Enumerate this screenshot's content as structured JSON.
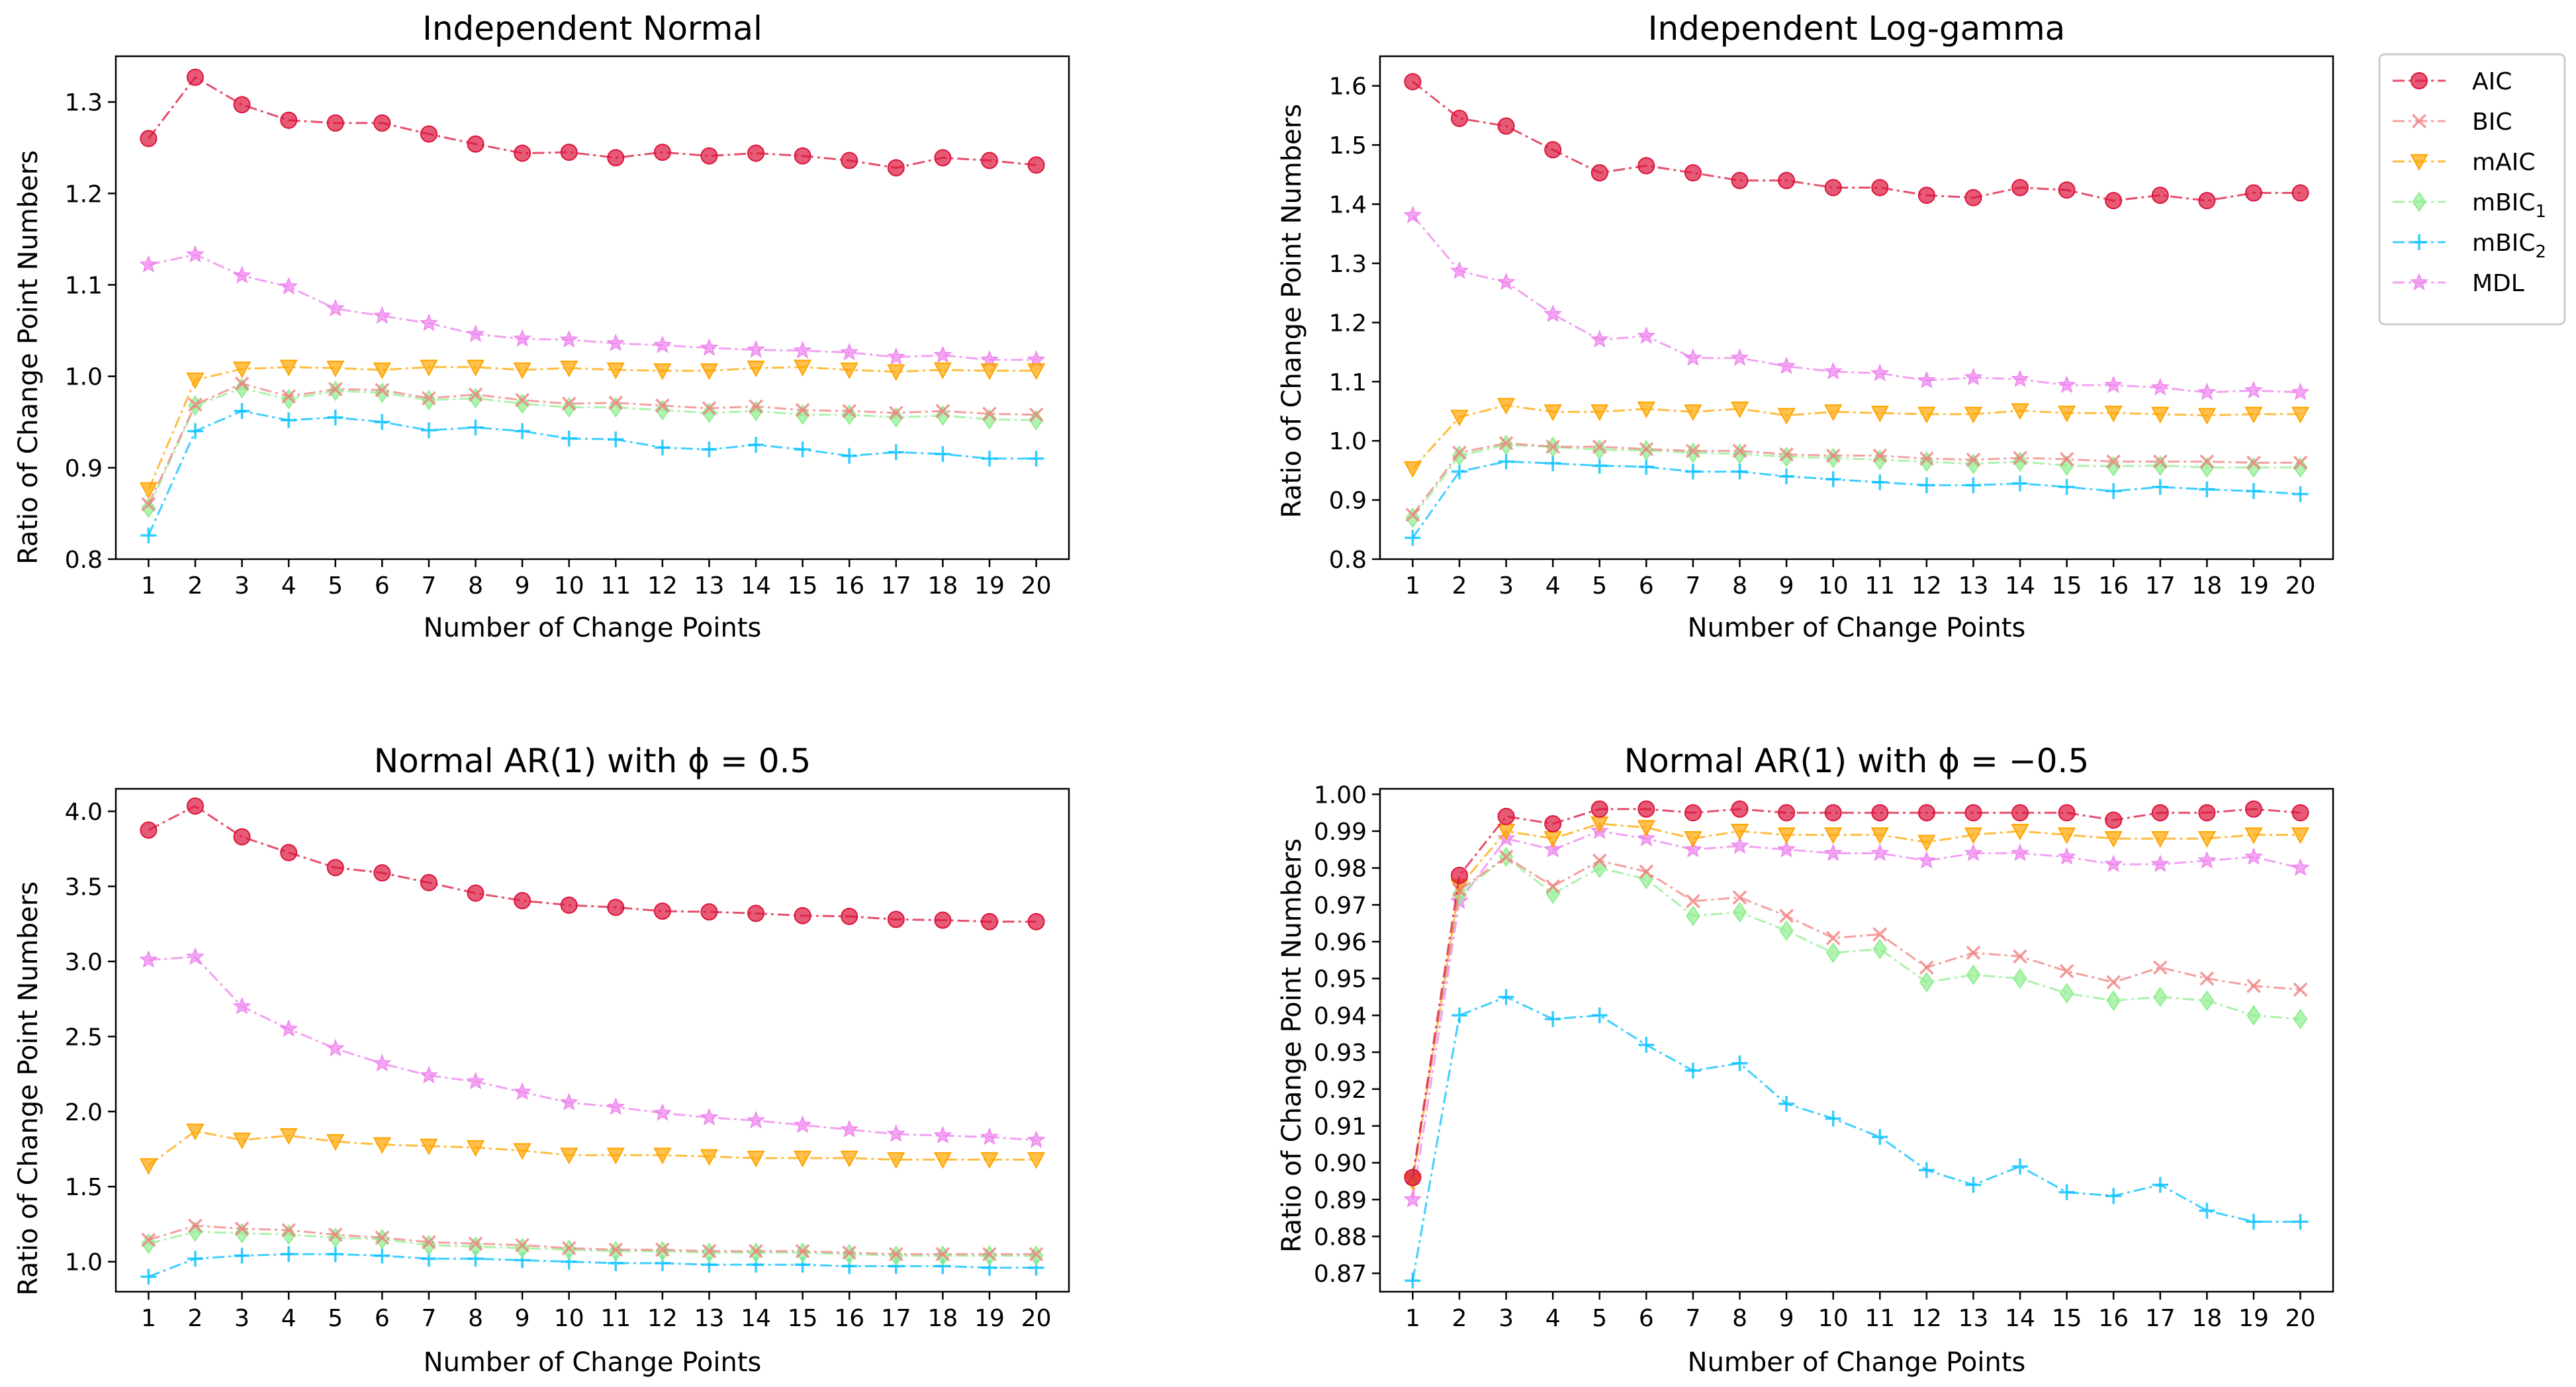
{
  "chart_data": [
    {
      "type": "line",
      "title": "Independent Normal",
      "xlabel": "Number of Change Points",
      "ylabel": "Ratio of Change Point Numbers",
      "x": [
        1,
        2,
        3,
        4,
        5,
        6,
        7,
        8,
        9,
        10,
        11,
        12,
        13,
        14,
        15,
        16,
        17,
        18,
        19,
        20
      ],
      "xlim": [
        0.3,
        20.7
      ],
      "ylim": [
        0.8,
        1.35
      ],
      "yticks": [
        "0.8",
        "0.9",
        "1.0",
        "1.1",
        "1.2",
        "1.3"
      ],
      "grid": false,
      "series": [
        {
          "name": "AIC",
          "values": [
            1.26,
            1.327,
            1.297,
            1.28,
            1.277,
            1.277,
            1.265,
            1.254,
            1.244,
            1.245,
            1.239,
            1.245,
            1.241,
            1.244,
            1.241,
            1.236,
            1.228,
            1.239,
            1.236,
            1.231
          ]
        },
        {
          "name": "BIC",
          "values": [
            0.86,
            0.969,
            0.992,
            0.978,
            0.986,
            0.985,
            0.976,
            0.98,
            0.974,
            0.97,
            0.971,
            0.968,
            0.965,
            0.967,
            0.963,
            0.962,
            0.96,
            0.962,
            0.959,
            0.958
          ]
        },
        {
          "name": "mAIC",
          "values": [
            0.876,
            0.996,
            1.008,
            1.01,
            1.009,
            1.007,
            1.01,
            1.01,
            1.007,
            1.009,
            1.007,
            1.006,
            1.006,
            1.009,
            1.01,
            1.007,
            1.005,
            1.007,
            1.006,
            1.006
          ]
        },
        {
          "name": "mBIC1",
          "values": [
            0.856,
            0.968,
            0.987,
            0.975,
            0.984,
            0.982,
            0.974,
            0.976,
            0.97,
            0.966,
            0.966,
            0.963,
            0.96,
            0.962,
            0.958,
            0.958,
            0.955,
            0.957,
            0.953,
            0.952
          ]
        },
        {
          "name": "mBIC2",
          "values": [
            0.826,
            0.94,
            0.962,
            0.952,
            0.955,
            0.95,
            0.941,
            0.944,
            0.94,
            0.932,
            0.931,
            0.922,
            0.92,
            0.925,
            0.92,
            0.913,
            0.917,
            0.915,
            0.91,
            0.91
          ]
        },
        {
          "name": "MDL",
          "values": [
            1.122,
            1.133,
            1.11,
            1.098,
            1.074,
            1.066,
            1.058,
            1.046,
            1.041,
            1.04,
            1.036,
            1.034,
            1.031,
            1.029,
            1.028,
            1.026,
            1.021,
            1.023,
            1.018,
            1.018
          ]
        }
      ]
    },
    {
      "type": "line",
      "title": "Independent Log-gamma",
      "xlabel": "Number of Change Points",
      "ylabel": "Ratio of Change Point Numbers",
      "x": [
        1,
        2,
        3,
        4,
        5,
        6,
        7,
        8,
        9,
        10,
        11,
        12,
        13,
        14,
        15,
        16,
        17,
        18,
        19,
        20
      ],
      "xlim": [
        0.3,
        20.7
      ],
      "ylim": [
        0.8,
        1.65
      ],
      "yticks": [
        "0.8",
        "0.9",
        "1.0",
        "1.1",
        "1.2",
        "1.3",
        "1.4",
        "1.5",
        "1.6"
      ],
      "grid": false,
      "series": [
        {
          "name": "AIC",
          "values": [
            1.607,
            1.545,
            1.532,
            1.492,
            1.453,
            1.465,
            1.453,
            1.44,
            1.44,
            1.428,
            1.428,
            1.415,
            1.411,
            1.428,
            1.424,
            1.406,
            1.415,
            1.406,
            1.419,
            1.419
          ]
        },
        {
          "name": "BIC",
          "values": [
            0.875,
            0.98,
            0.996,
            0.99,
            0.99,
            0.986,
            0.983,
            0.983,
            0.977,
            0.975,
            0.975,
            0.97,
            0.968,
            0.971,
            0.969,
            0.965,
            0.965,
            0.965,
            0.963,
            0.963
          ]
        },
        {
          "name": "mAIC",
          "values": [
            0.953,
            1.04,
            1.06,
            1.049,
            1.049,
            1.054,
            1.049,
            1.054,
            1.043,
            1.049,
            1.047,
            1.045,
            1.045,
            1.051,
            1.047,
            1.047,
            1.045,
            1.043,
            1.045,
            1.045
          ]
        },
        {
          "name": "mBIC1",
          "values": [
            0.87,
            0.975,
            0.993,
            0.99,
            0.985,
            0.984,
            0.98,
            0.978,
            0.973,
            0.971,
            0.968,
            0.965,
            0.961,
            0.965,
            0.958,
            0.957,
            0.958,
            0.955,
            0.955,
            0.955
          ]
        },
        {
          "name": "mBIC2",
          "values": [
            0.836,
            0.948,
            0.965,
            0.962,
            0.958,
            0.956,
            0.948,
            0.948,
            0.94,
            0.935,
            0.93,
            0.925,
            0.925,
            0.928,
            0.922,
            0.915,
            0.922,
            0.918,
            0.915,
            0.91
          ]
        },
        {
          "name": "MDL",
          "values": [
            1.381,
            1.287,
            1.268,
            1.214,
            1.171,
            1.177,
            1.14,
            1.14,
            1.126,
            1.117,
            1.114,
            1.102,
            1.107,
            1.104,
            1.094,
            1.094,
            1.09,
            1.082,
            1.085,
            1.082
          ]
        }
      ]
    },
    {
      "type": "line",
      "title": "Normal AR(1) with ϕ = 0.5",
      "xlabel": "Number of Change Points",
      "ylabel": "Ratio of Change Point Numbers",
      "x": [
        1,
        2,
        3,
        4,
        5,
        6,
        7,
        8,
        9,
        10,
        11,
        12,
        13,
        14,
        15,
        16,
        17,
        18,
        19,
        20
      ],
      "xlim": [
        0.3,
        20.7
      ],
      "ylim": [
        0.8,
        4.15
      ],
      "yticks": [
        "1.0",
        "1.5",
        "2.0",
        "2.5",
        "3.0",
        "3.5",
        "4.0"
      ],
      "grid": false,
      "series": [
        {
          "name": "AIC",
          "values": [
            3.875,
            4.035,
            3.83,
            3.725,
            3.625,
            3.59,
            3.525,
            3.455,
            3.405,
            3.375,
            3.36,
            3.335,
            3.33,
            3.32,
            3.305,
            3.3,
            3.28,
            3.275,
            3.265,
            3.265
          ]
        },
        {
          "name": "BIC",
          "values": [
            1.145,
            1.24,
            1.22,
            1.21,
            1.18,
            1.16,
            1.13,
            1.12,
            1.11,
            1.09,
            1.08,
            1.08,
            1.07,
            1.07,
            1.07,
            1.06,
            1.05,
            1.05,
            1.05,
            1.05
          ]
        },
        {
          "name": "mAIC",
          "values": [
            1.64,
            1.87,
            1.81,
            1.84,
            1.8,
            1.78,
            1.77,
            1.76,
            1.74,
            1.71,
            1.71,
            1.71,
            1.7,
            1.69,
            1.69,
            1.69,
            1.68,
            1.68,
            1.68,
            1.68
          ]
        },
        {
          "name": "mBIC1",
          "values": [
            1.12,
            1.2,
            1.19,
            1.18,
            1.16,
            1.15,
            1.11,
            1.1,
            1.09,
            1.08,
            1.07,
            1.07,
            1.06,
            1.06,
            1.06,
            1.05,
            1.04,
            1.04,
            1.04,
            1.04
          ]
        },
        {
          "name": "mBIC2",
          "values": [
            0.9,
            1.02,
            1.04,
            1.05,
            1.05,
            1.04,
            1.02,
            1.02,
            1.01,
            1.0,
            0.99,
            0.99,
            0.98,
            0.98,
            0.98,
            0.97,
            0.97,
            0.97,
            0.96,
            0.96
          ]
        },
        {
          "name": "MDL",
          "values": [
            3.01,
            3.03,
            2.7,
            2.55,
            2.42,
            2.32,
            2.24,
            2.2,
            2.13,
            2.06,
            2.03,
            1.99,
            1.96,
            1.94,
            1.91,
            1.88,
            1.85,
            1.84,
            1.83,
            1.81
          ]
        }
      ]
    },
    {
      "type": "line",
      "title": "Normal AR(1) with ϕ = −0.5",
      "xlabel": "Number of Change Points",
      "ylabel": "Ratio of Change Point Numbers",
      "x": [
        1,
        2,
        3,
        4,
        5,
        6,
        7,
        8,
        9,
        10,
        11,
        12,
        13,
        14,
        15,
        16,
        17,
        18,
        19,
        20
      ],
      "xlim": [
        0.3,
        20.7
      ],
      "ylim": [
        0.865,
        1.0015
      ],
      "yticks": [
        "0.87",
        "0.88",
        "0.89",
        "0.90",
        "0.91",
        "0.92",
        "0.93",
        "0.94",
        "0.95",
        "0.96",
        "0.97",
        "0.98",
        "0.99",
        "1.00"
      ],
      "grid": false,
      "series": [
        {
          "name": "AIC",
          "values": [
            0.896,
            0.978,
            0.994,
            0.992,
            0.996,
            0.996,
            0.995,
            0.996,
            0.995,
            0.995,
            0.995,
            0.995,
            0.995,
            0.995,
            0.995,
            0.993,
            0.995,
            0.995,
            0.996,
            0.995
          ]
        },
        {
          "name": "BIC",
          "values": [
            0.896,
            0.974,
            0.983,
            0.975,
            0.982,
            0.979,
            0.971,
            0.972,
            0.967,
            0.961,
            0.962,
            0.953,
            0.957,
            0.956,
            0.952,
            0.949,
            0.953,
            0.95,
            0.948,
            0.947
          ]
        },
        {
          "name": "mAIC",
          "values": [
            0.895,
            0.975,
            0.99,
            0.988,
            0.992,
            0.991,
            0.988,
            0.99,
            0.989,
            0.989,
            0.989,
            0.987,
            0.989,
            0.99,
            0.989,
            0.988,
            0.988,
            0.988,
            0.989,
            0.989
          ]
        },
        {
          "name": "mBIC1",
          "values": [
            0.896,
            0.973,
            0.983,
            0.973,
            0.98,
            0.977,
            0.967,
            0.968,
            0.963,
            0.957,
            0.958,
            0.949,
            0.951,
            0.95,
            0.946,
            0.944,
            0.945,
            0.944,
            0.94,
            0.939
          ]
        },
        {
          "name": "mBIC2",
          "values": [
            0.868,
            0.94,
            0.945,
            0.939,
            0.94,
            0.932,
            0.925,
            0.927,
            0.916,
            0.912,
            0.907,
            0.898,
            0.894,
            0.899,
            0.892,
            0.891,
            0.894,
            0.887,
            0.884,
            0.884
          ]
        },
        {
          "name": "MDL",
          "values": [
            0.89,
            0.971,
            0.988,
            0.985,
            0.99,
            0.988,
            0.985,
            0.986,
            0.985,
            0.984,
            0.984,
            0.982,
            0.984,
            0.984,
            0.983,
            0.981,
            0.981,
            0.982,
            0.983,
            0.98
          ]
        }
      ]
    }
  ],
  "legend": {
    "placement": "right of top-right panel",
    "entries": [
      {
        "key": "AIC",
        "label": "AIC",
        "sub": "",
        "color": "#DC143C",
        "marker": "circle"
      },
      {
        "key": "BIC",
        "label": "BIC",
        "sub": "",
        "color": "#F08080",
        "marker": "x"
      },
      {
        "key": "mAIC",
        "label": "mAIC",
        "sub": "",
        "color": "#FFA500",
        "marker": "triangle-down"
      },
      {
        "key": "mBIC1",
        "label": "mBIC",
        "sub": "1",
        "color": "#90EE90",
        "marker": "diamond"
      },
      {
        "key": "mBIC2",
        "label": "mBIC",
        "sub": "2",
        "color": "#00BFFF",
        "marker": "plus"
      },
      {
        "key": "MDL",
        "label": "MDL",
        "sub": "",
        "color": "#EE82EE",
        "marker": "star"
      }
    ]
  }
}
